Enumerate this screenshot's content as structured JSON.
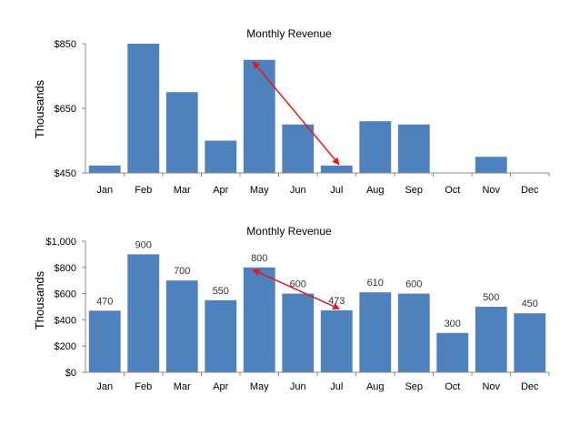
{
  "chart_data": [
    {
      "type": "bar",
      "title": "Monthly Revenue",
      "ylabel": "Thousands",
      "xlabel": "",
      "categories": [
        "Jan",
        "Feb",
        "Mar",
        "Apr",
        "May",
        "Jun",
        "Jul",
        "Aug",
        "Sep",
        "Oct",
        "Nov",
        "Dec"
      ],
      "values": [
        473,
        850,
        700,
        550,
        800,
        600,
        473,
        610,
        600,
        450,
        500,
        450
      ],
      "ylim": [
        450,
        850
      ],
      "yticks": [
        450,
        650,
        850
      ],
      "ytick_labels": [
        "$450",
        "$650",
        "$850"
      ],
      "grid": false,
      "bar_color": "#4F81BD",
      "annotations": [
        {
          "type": "double-arrow",
          "from_category": "May",
          "to_category": "Jul",
          "color": "#E41A1C"
        }
      ]
    },
    {
      "type": "bar",
      "title": "Monthly Revenue",
      "ylabel": "Thousands",
      "xlabel": "",
      "categories": [
        "Jan",
        "Feb",
        "Mar",
        "Apr",
        "May",
        "Jun",
        "Jul",
        "Aug",
        "Sep",
        "Oct",
        "Nov",
        "Dec"
      ],
      "values": [
        470,
        900,
        700,
        550,
        800,
        600,
        473,
        610,
        600,
        300,
        500,
        450
      ],
      "data_labels": [
        "470",
        "900",
        "700",
        "550",
        "800",
        "600",
        "473",
        "610",
        "600",
        "300",
        "500",
        "450"
      ],
      "ylim": [
        0,
        1000
      ],
      "yticks": [
        0,
        200,
        400,
        600,
        800,
        1000
      ],
      "ytick_labels": [
        "$0",
        "$200",
        "$400",
        "$600",
        "$800",
        "$1,000"
      ],
      "grid": false,
      "bar_color": "#4F81BD",
      "annotations": [
        {
          "type": "double-arrow",
          "from_category": "May",
          "to_category": "Jul",
          "color": "#E41A1C"
        }
      ]
    }
  ]
}
